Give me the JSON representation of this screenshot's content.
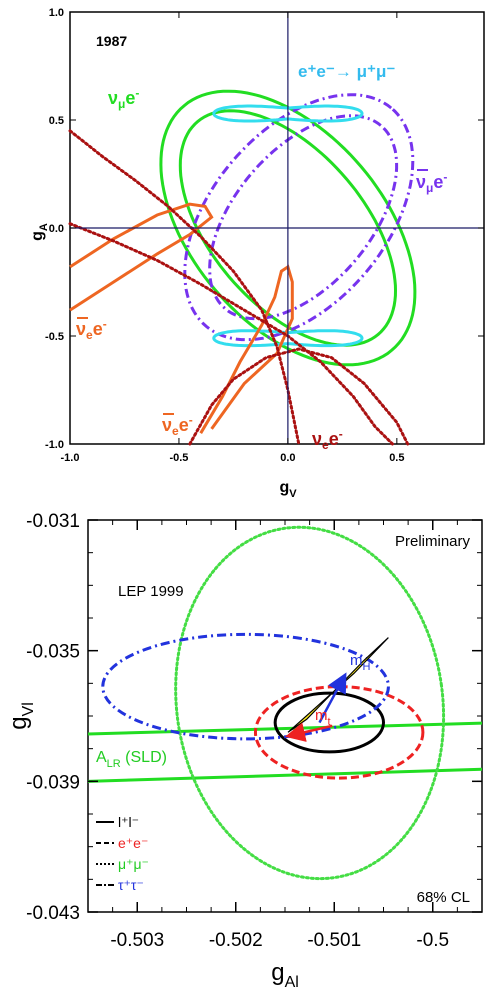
{
  "chart_data": [
    {
      "type": "contour",
      "year_label": "1987",
      "xlabel": "g",
      "xlabel_sub": "V",
      "ylabel": "g",
      "ylabel_sub": "A",
      "xlim": [
        -1.0,
        0.9
      ],
      "ylim": [
        -1.0,
        1.0
      ],
      "xticks": [
        -1.0,
        -0.5,
        0.0,
        0.5
      ],
      "xtick_labels": [
        "-1.0",
        "-0.5",
        "0.0",
        "0.5"
      ],
      "yticks": [
        -1.0,
        -0.5,
        0.0,
        0.5,
        1.0
      ],
      "ytick_labels": [
        "-1.0",
        "-0.5",
        "0.0",
        "0.5",
        "1.0"
      ],
      "series": [
        {
          "name": "νμ e-",
          "label_main": "ν",
          "label_sub": "μ",
          "label_tail": "e",
          "label_sup": "-",
          "color": "#22dd22",
          "style": "solid",
          "shape": "tilted ellipse band",
          "center": [
            0.0,
            0.0
          ],
          "semi_major": 0.74,
          "semi_minor": 0.44,
          "angle_deg": -50
        },
        {
          "name": "ν̄μ e-",
          "label_main": "ν",
          "label_sub": "μ",
          "label_tail": "e",
          "label_sup": "-",
          "color": "#7733ee",
          "style": "dash-dot",
          "shape": "tilted ellipse band",
          "center": [
            0.05,
            0.05
          ],
          "semi_major": 0.66,
          "semi_minor": 0.4,
          "angle_deg": 50
        },
        {
          "name": "e+e- → μ+μ-",
          "label_text": "e⁺e⁻→ μ⁺μ⁻",
          "color": "#33ddee",
          "style": "solid",
          "shape": "two lobed regions",
          "centers": [
            [
              0.0,
              0.53
            ],
            [
              0.0,
              -0.51
            ]
          ]
        },
        {
          "name": "ν̄e e-",
          "label_main": "ν",
          "label_sub": "e",
          "label_tail": "e",
          "label_sup": "-",
          "color": "#ee6622",
          "style": "solid",
          "shape": "crossing bands"
        },
        {
          "name": "νe e-",
          "label_main": "ν",
          "label_sub": "e",
          "label_tail": "e",
          "label_sup": "-",
          "color": "#aa1111",
          "style": "dotted",
          "shape": "two hyperbolic arcs"
        }
      ]
    },
    {
      "type": "contour",
      "header_right": "Preliminary",
      "header_left": "LEP 1999",
      "footer_right": "68% CL",
      "xlabel": "g",
      "xlabel_sub": "Al",
      "ylabel": "g",
      "ylabel_sub": "Vl",
      "xlim": [
        -0.5035,
        -0.4995
      ],
      "ylim": [
        -0.043,
        -0.031
      ],
      "xticks": [
        -0.503,
        -0.502,
        -0.501,
        -0.5
      ],
      "xtick_labels": [
        "-0.503",
        "-0.502",
        "-0.501",
        "-0.5"
      ],
      "yticks": [
        -0.031,
        -0.035,
        -0.039,
        -0.043
      ],
      "ytick_labels": [
        "-0.031",
        "-0.035",
        "-0.039",
        "-0.043"
      ],
      "series": [
        {
          "name": "l+l-",
          "legend": "l⁺l⁻",
          "color": "#000000",
          "style": "solid",
          "center": [
            -0.50105,
            -0.0372
          ],
          "rx": 0.00055,
          "ry": 0.0009
        },
        {
          "name": "e+e-",
          "legend": "e⁺e⁻",
          "color": "#ee2222",
          "style": "dashed",
          "center": [
            -0.50095,
            -0.0375
          ],
          "rx": 0.00085,
          "ry": 0.0014
        },
        {
          "name": "μ+μ-",
          "legend": "μ⁺μ⁻",
          "color": "#44dd44",
          "style": "dotted",
          "center": [
            -0.50125,
            -0.0366
          ],
          "rx": 0.00135,
          "ry": 0.0054
        },
        {
          "name": "τ+τ-",
          "legend": "τ⁺τ⁻",
          "color": "#2233dd",
          "style": "dash-dot",
          "center": [
            -0.5019,
            -0.0361
          ],
          "rx": 0.00145,
          "ry": 0.0016
        }
      ],
      "band": {
        "name": "ALR (SLD)",
        "label_main": "A",
        "label_sub": "LR",
        "label_tail": " (SLD)",
        "color": "#22dd22",
        "lines": [
          [
            [
              -0.5035,
              -0.03755
            ],
            [
              -0.4995,
              -0.03722
            ]
          ],
          [
            [
              -0.5035,
              -0.039
            ],
            [
              -0.4995,
              -0.03863
            ]
          ]
        ]
      },
      "arrows": [
        {
          "label": "m",
          "label_sub": "H",
          "color": "#2233dd",
          "from": [
            -0.50115,
            -0.0372
          ],
          "to": [
            -0.5009,
            -0.0358
          ]
        },
        {
          "label": "m",
          "label_sub": "t",
          "color": "#ee2222",
          "from": [
            -0.50102,
            -0.0373
          ],
          "to": [
            -0.50145,
            -0.0376
          ]
        }
      ]
    }
  ]
}
